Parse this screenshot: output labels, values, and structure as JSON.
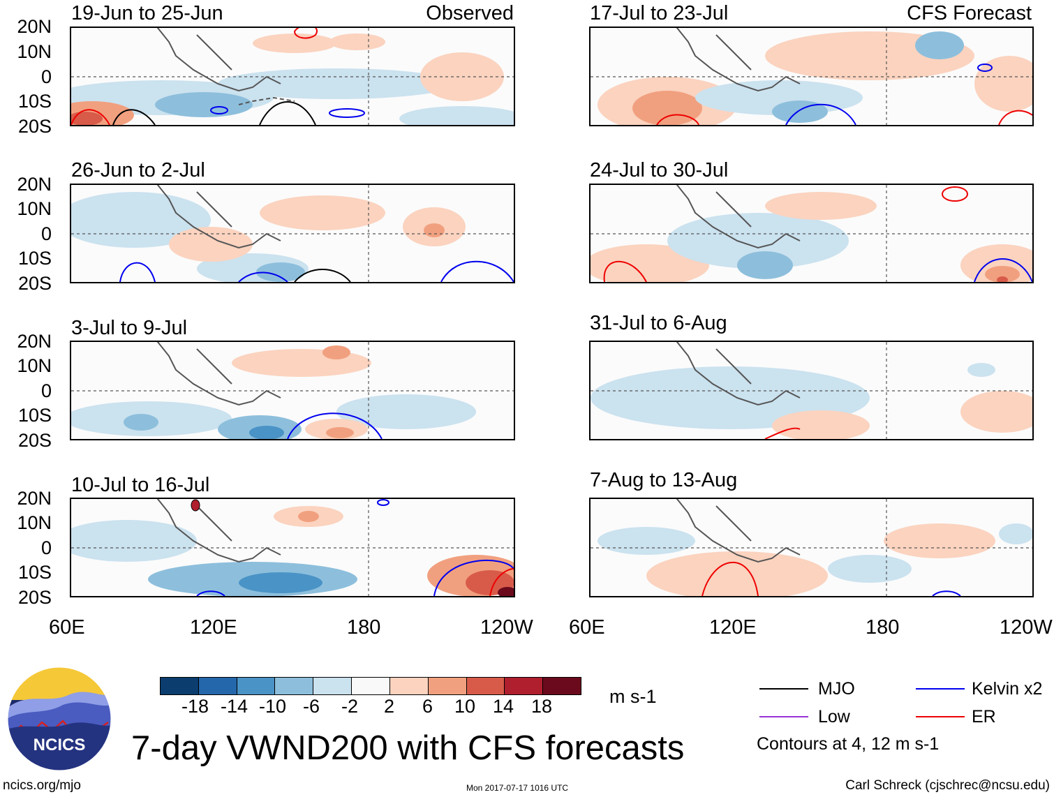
{
  "panels": [
    {
      "title": "19-Jun to 25-Jun",
      "tag": "Observed"
    },
    {
      "title": "26-Jun to 2-Jul"
    },
    {
      "title": "3-Jul to 9-Jul"
    },
    {
      "title": "10-Jul to 16-Jul"
    },
    {
      "title": "17-Jul to 23-Jul",
      "tag": "CFS Forecast"
    },
    {
      "title": "24-Jul to 30-Jul"
    },
    {
      "title": "31-Jul to 6-Aug"
    },
    {
      "title": "7-Aug to 13-Aug"
    }
  ],
  "lat_labels": [
    "20N",
    "10N",
    "0",
    "10S",
    "20S"
  ],
  "lon_labels": [
    "60E",
    "120E",
    "180",
    "120W"
  ],
  "colorbar": {
    "unit": "m s-1",
    "labels": [
      "-18",
      "-14",
      "-10",
      "-6",
      "-2",
      "2",
      "6",
      "10",
      "14",
      "18"
    ],
    "colors": [
      "#0b3d6e",
      "#2467ab",
      "#4a93c6",
      "#8dbfdc",
      "#cbe2ef",
      "#f9f9f9",
      "#fbd3bf",
      "#f1a07f",
      "#d85b4a",
      "#b01f2d",
      "#6b0a1c"
    ]
  },
  "legend": {
    "items": [
      {
        "label": "MJO",
        "color": "#000000"
      },
      {
        "label": "Kelvin x2",
        "color": "#0000ee"
      },
      {
        "label": "Low",
        "color": "#9a32d4"
      },
      {
        "label": "ER",
        "color": "#ee0000"
      }
    ],
    "note": "Contours at 4, 12 m s-1"
  },
  "main_title": "7-day VWND200 with CFS forecasts",
  "logo_text": "NCICS",
  "footer": {
    "left": "ncics.org/mjo",
    "center": "Mon 2017-07-17 1016 UTC",
    "right": "Carl Schreck (cjschrec@ncsu.edu)"
  }
}
